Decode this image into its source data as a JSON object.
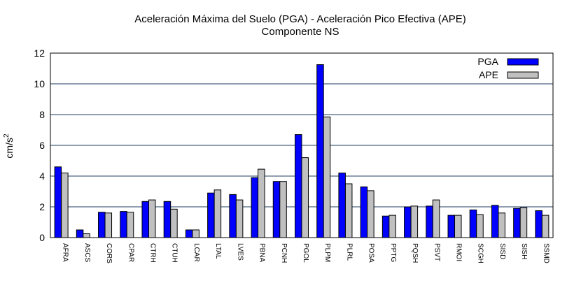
{
  "chart_data": {
    "type": "bar",
    "title_line1": "Aceleración Máxima del Suelo (PGA) -  Aceleración Pico Efectiva (APE)",
    "title_line2": "Componente NS",
    "ylabel": "cm/s",
    "ylabel_superscript": "2",
    "xlabel": "",
    "ylim": [
      0,
      12
    ],
    "yticks": [
      0,
      2,
      4,
      6,
      8,
      10,
      12
    ],
    "grid": "horizontal",
    "legend_position": "top-right",
    "categories": [
      "AFRA",
      "ASCS",
      "CORS",
      "CPAR",
      "CTRH",
      "CTUH",
      "LCAR",
      "LTAL",
      "LVES",
      "PBNA",
      "PCNH",
      "PGOL",
      "PLPM",
      "PLRL",
      "POSA",
      "PPTG",
      "PQSH",
      "PSVT",
      "RMOI",
      "SCGH",
      "SISD",
      "SISH",
      "SSMD"
    ],
    "series": [
      {
        "name": "PGA",
        "color": "#0000ff",
        "values": [
          4.6,
          0.5,
          1.65,
          1.7,
          2.35,
          2.35,
          0.5,
          2.9,
          2.8,
          3.9,
          3.65,
          6.7,
          11.25,
          4.2,
          3.3,
          1.4,
          2.0,
          2.05,
          1.45,
          1.8,
          2.1,
          1.9,
          1.75
        ]
      },
      {
        "name": "APE",
        "color": "#c0c0c0",
        "values": [
          4.2,
          0.25,
          1.6,
          1.65,
          2.45,
          1.85,
          0.5,
          3.1,
          2.45,
          4.45,
          3.65,
          5.2,
          7.85,
          3.5,
          3.05,
          1.45,
          2.05,
          2.45,
          1.45,
          1.5,
          1.6,
          1.95,
          1.45
        ]
      }
    ]
  }
}
